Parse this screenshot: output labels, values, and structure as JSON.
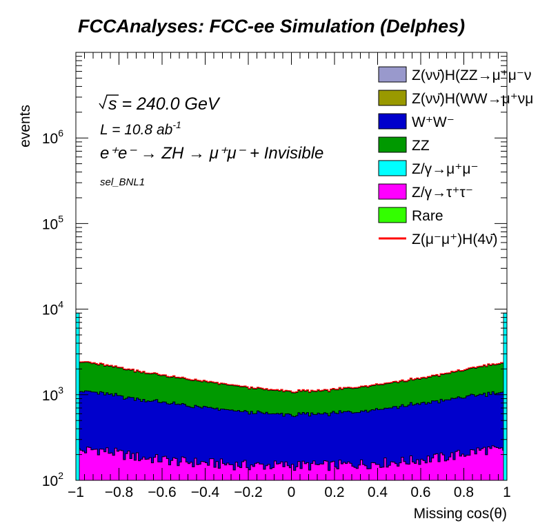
{
  "chart_data": {
    "type": "area",
    "title": "FCCAnalyses: FCC-ee Simulation (Delphes)",
    "xlabel": "Missing cos(θ)",
    "ylabel": "events",
    "xlim": [
      -1,
      1
    ],
    "ylim": [
      100,
      10000000
    ],
    "log_y": true,
    "x_ticks": [
      "−1",
      "−0.8",
      "−0.6",
      "−0.4",
      "−0.2",
      "0",
      "0.2",
      "0.4",
      "0.6",
      "0.8",
      "1"
    ],
    "y_ticks": [
      {
        "base": "10",
        "exp": "2"
      },
      {
        "base": "10",
        "exp": "3"
      },
      {
        "base": "10",
        "exp": "4"
      },
      {
        "base": "10",
        "exp": "5"
      },
      {
        "base": "10",
        "exp": "6"
      }
    ],
    "annotations": {
      "sqrt_s": "s = 240.0 GeV",
      "lumi_base": "L = 10.8 ab",
      "lumi_exp": "-1",
      "process": "e⁺e⁻ → ZH → μ⁺μ⁻ + Invisible",
      "selection": "sel_BNL1"
    },
    "legend_position": "top-right",
    "legend": [
      {
        "label": "Z(νν̄)H(ZZ→μ⁺μ⁻ν",
        "color": "#9999cc",
        "style": "box"
      },
      {
        "label": "Z(νν̄)H(WW→μ⁺νμ",
        "color": "#999900",
        "style": "box"
      },
      {
        "label": "W⁺W⁻",
        "color": "#0000cc",
        "style": "box"
      },
      {
        "label": "ZZ",
        "color": "#009900",
        "style": "box"
      },
      {
        "label": "Z/γ→μ⁺μ⁻",
        "color": "#00ffff",
        "style": "box"
      },
      {
        "label": "Z/γ→τ⁺τ⁻",
        "color": "#ff00ff",
        "style": "box"
      },
      {
        "label": "Rare",
        "color": "#33ff00",
        "style": "box"
      },
      {
        "label": "Z(μ⁻μ⁺)H(4ν̄)",
        "color": "#ff0000",
        "style": "line"
      }
    ],
    "x": [
      -0.98,
      -0.9,
      -0.8,
      -0.7,
      -0.6,
      -0.5,
      -0.4,
      -0.3,
      -0.2,
      -0.1,
      0.0,
      0.1,
      0.2,
      0.3,
      0.4,
      0.5,
      0.6,
      0.7,
      0.8,
      0.9,
      0.98
    ],
    "stack_order": [
      "Z/γ→τ⁺τ⁻",
      "W⁺W⁻",
      "ZZ"
    ],
    "series": [
      {
        "name": "Z/γ→τ⁺τ⁻",
        "color": "#ff00ff",
        "values": [
          220,
          230,
          205,
          185,
          175,
          165,
          160,
          155,
          150,
          150,
          150,
          150,
          150,
          155,
          160,
          165,
          175,
          185,
          205,
          230,
          220
        ]
      },
      {
        "name": "W⁺W⁻",
        "color": "#0000cc",
        "values": [
          880,
          830,
          755,
          695,
          645,
          585,
          545,
          505,
          475,
          450,
          430,
          440,
          460,
          485,
          525,
          565,
          615,
          665,
          735,
          790,
          830
        ]
      },
      {
        "name": "ZZ",
        "color": "#009900",
        "values": [
          1300,
          1220,
          1100,
          960,
          860,
          780,
          700,
          640,
          580,
          530,
          500,
          500,
          530,
          570,
          620,
          680,
          750,
          860,
          990,
          1150,
          1250
        ]
      }
    ],
    "edge_spikes": {
      "value": 9000,
      "color": "#00ffff"
    },
    "signal_series": {
      "name": "Z(μ⁻μ⁺)H(4ν̄)",
      "color": "#ff0000"
    }
  }
}
